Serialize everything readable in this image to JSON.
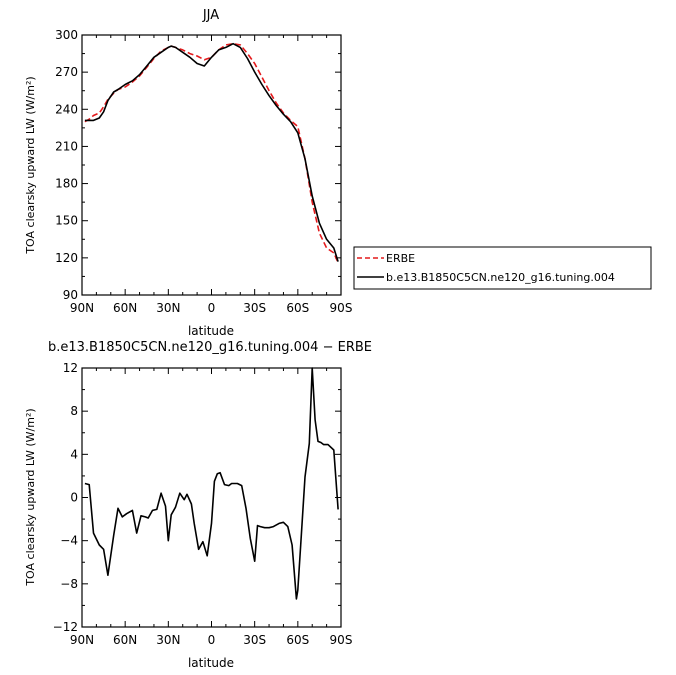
{
  "chart_data": [
    {
      "type": "line",
      "title": "JJA",
      "xlabel": "latitude",
      "ylabel": "TOA clearsky upward LW (W/m²)",
      "xlim": [
        90,
        -90
      ],
      "ylim": [
        90,
        300
      ],
      "x_ticks": [
        90,
        60,
        30,
        0,
        -30,
        -60,
        -90
      ],
      "x_tick_labels": [
        "90N",
        "60N",
        "30N",
        "0",
        "30S",
        "60S",
        "90S"
      ],
      "y_ticks": [
        90,
        120,
        150,
        180,
        210,
        240,
        270,
        300
      ],
      "y_tick_labels": [
        "90",
        "120",
        "150",
        "180",
        "210",
        "240",
        "270",
        "300"
      ],
      "legend_position": "right",
      "series": [
        {
          "name": "ERBE",
          "color": "#e41a1c",
          "dash": "dashed",
          "x": [
            88,
            85,
            82,
            78,
            75,
            72,
            68,
            65,
            60,
            55,
            50,
            45,
            40,
            35,
            30,
            28,
            25,
            20,
            15,
            10,
            5,
            0,
            -5,
            -10,
            -15,
            -20,
            -25,
            -30,
            -35,
            -40,
            -45,
            -50,
            -55,
            -60,
            -65,
            -70,
            -75,
            -80,
            -85,
            -88
          ],
          "y": [
            230,
            232,
            235,
            237,
            242,
            248,
            253,
            256,
            258,
            262,
            267,
            274,
            281,
            287,
            290,
            291,
            290,
            288,
            285,
            283,
            280,
            282,
            288,
            292,
            293,
            292,
            285,
            277,
            266,
            255,
            245,
            237,
            231,
            226,
            200,
            165,
            140,
            128,
            124,
            116
          ]
        },
        {
          "name": "b.e13.B1850C5CN.ne120_g16.tuning.004",
          "color": "#000000",
          "dash": "solid",
          "x": [
            88,
            85,
            82,
            78,
            75,
            72,
            68,
            65,
            60,
            55,
            50,
            45,
            40,
            35,
            30,
            28,
            25,
            20,
            15,
            10,
            5,
            0,
            -5,
            -10,
            -15,
            -20,
            -25,
            -30,
            -35,
            -40,
            -45,
            -50,
            -55,
            -60,
            -65,
            -70,
            -75,
            -80,
            -85,
            -88
          ],
          "y": [
            231,
            231,
            231,
            233,
            238,
            247,
            254,
            256,
            260,
            263,
            268,
            275,
            282,
            286,
            290,
            291,
            290,
            286,
            282,
            277,
            275,
            282,
            288,
            290,
            293,
            290,
            281,
            270,
            260,
            251,
            243,
            236,
            230,
            221,
            200,
            170,
            148,
            135,
            128,
            117
          ]
        }
      ]
    },
    {
      "type": "line",
      "title": "b.e13.B1850C5CN.ne120_g16.tuning.004 − ERBE",
      "xlabel": "latitude",
      "ylabel": "TOA clearsky upward LW (W/m²)",
      "xlim": [
        90,
        -90
      ],
      "ylim": [
        -12,
        12
      ],
      "x_ticks": [
        90,
        60,
        30,
        0,
        -30,
        -60,
        -90
      ],
      "x_tick_labels": [
        "90N",
        "60N",
        "30N",
        "0",
        "30S",
        "60S",
        "90S"
      ],
      "y_ticks": [
        -12,
        -8,
        -4,
        0,
        4,
        8,
        12
      ],
      "y_tick_labels": [
        "−12",
        "−8",
        "−4",
        "0",
        "4",
        "8",
        "12"
      ],
      "series": [
        {
          "color": "#000000",
          "x": [
            88,
            85,
            82,
            78,
            75,
            72,
            68,
            65,
            62,
            59,
            55,
            52,
            49,
            46,
            44,
            41,
            38,
            35,
            32,
            30,
            28,
            25,
            22,
            19,
            17,
            14,
            12,
            9,
            6,
            3,
            0,
            -2,
            -4,
            -6,
            -9,
            -12,
            -14,
            -16,
            -18,
            -21,
            -24,
            -27,
            -30,
            -32,
            -34,
            -37,
            -40,
            -43,
            -47,
            -50,
            -53,
            -56,
            -59,
            -60,
            -62,
            -65,
            -68,
            -70,
            -72,
            -74,
            -76,
            -78,
            -81,
            -85,
            -88
          ],
          "y": [
            1.3,
            1.2,
            -3.3,
            -4.4,
            -4.8,
            -7.2,
            -3.5,
            -1.0,
            -1.8,
            -1.5,
            -1.2,
            -3.3,
            -1.7,
            -1.8,
            -1.9,
            -1.2,
            -1.1,
            0.4,
            -0.8,
            -4.0,
            -1.6,
            -0.9,
            0.4,
            -0.2,
            0.3,
            -0.6,
            -2.4,
            -4.8,
            -4.1,
            -5.4,
            -2.4,
            1.5,
            2.2,
            2.3,
            1.2,
            1.1,
            1.3,
            1.3,
            1.3,
            1.1,
            -1.0,
            -3.8,
            -5.9,
            -2.6,
            -2.7,
            -2.8,
            -2.8,
            -2.7,
            -2.4,
            -2.3,
            -2.7,
            -4.4,
            -9.4,
            -8.6,
            -4.4,
            1.9,
            5.0,
            12.0,
            7.2,
            5.2,
            5.1,
            4.9,
            4.9,
            4.4,
            -1.1
          ]
        }
      ]
    }
  ]
}
